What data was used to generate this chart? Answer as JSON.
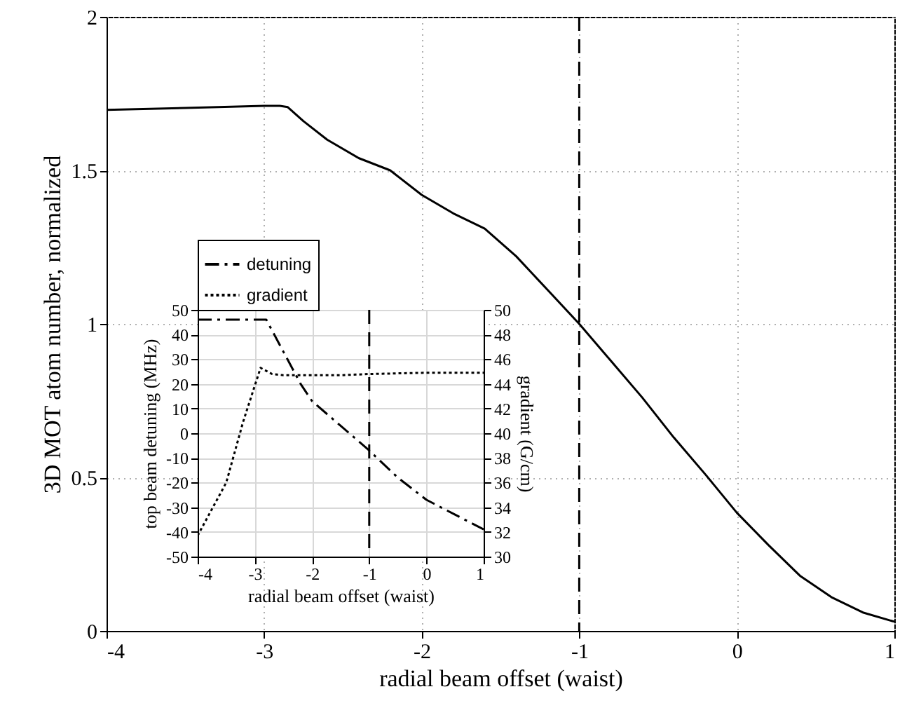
{
  "chart_data": [
    {
      "type": "line",
      "xlabel": "radial beam offset (waist)",
      "ylabel": "3D MOT atom number, normalized",
      "xlim": [
        -4,
        1
      ],
      "ylim": [
        0,
        2
      ],
      "xticks": [
        -4,
        -3,
        -2,
        -1,
        0,
        1
      ],
      "yticks": [
        0,
        0.5,
        1,
        1.5,
        2
      ],
      "grid": true,
      "line_style": "solid",
      "x": [
        -4,
        -3.5,
        -3,
        -2.9,
        -2.85,
        -2.75,
        -2.6,
        -2.4,
        -2.2,
        -2,
        -1.8,
        -1.6,
        -1.4,
        -1.2,
        -1,
        -0.8,
        -0.6,
        -0.4,
        -0.2,
        0,
        0.2,
        0.4,
        0.6,
        0.8,
        1
      ],
      "series": [
        {
          "color": "#000000",
          "values": [
            1.697,
            1.703,
            1.71,
            1.71,
            1.706,
            1.66,
            1.6,
            1.54,
            1.5,
            1.42,
            1.36,
            1.31,
            1.22,
            1.11,
            1.0,
            0.88,
            0.76,
            0.63,
            0.51,
            0.385,
            0.28,
            0.18,
            0.11,
            0.06,
            0.03
          ]
        }
      ],
      "ref_lines": [
        {
          "axis": "x",
          "value": -1,
          "line_style": "dashed",
          "color": "#000000"
        }
      ]
    },
    {
      "type": "line",
      "xlabel": "radial beam offset (waist)",
      "ylabel": "top beam detuning (MHz)",
      "y2label": "gradient (G/cm)",
      "xlim": [
        -4,
        1
      ],
      "ylim": [
        -50,
        50
      ],
      "y2lim": [
        30,
        50
      ],
      "xticks": [
        -4,
        -3,
        -2,
        -1,
        0,
        1
      ],
      "yticks": [
        -50,
        -40,
        -30,
        -20,
        -10,
        0,
        10,
        20,
        30,
        40,
        50
      ],
      "y2ticks": [
        30,
        32,
        34,
        36,
        38,
        40,
        42,
        44,
        46,
        48,
        50
      ],
      "grid": true,
      "legend": "top left",
      "series": [
        {
          "name": "detuning",
          "color": "#000000",
          "line_style": "dashdot",
          "x": [
            -4,
            -2.8,
            -2.5,
            -2.2,
            -2,
            -1.5,
            -1,
            -0.5,
            0,
            0.5,
            1
          ],
          "values": [
            46,
            46,
            33,
            20,
            13,
            3,
            -7,
            -18,
            -27,
            -33,
            -39
          ]
        },
        {
          "name": "gradient",
          "color": "#000000",
          "line_style": "dotted",
          "axis": "y2",
          "x": [
            -4,
            -3.5,
            -3.2,
            -2.9,
            -2.7,
            -2.5,
            -1.5,
            -1,
            0,
            1
          ],
          "values": [
            31.7,
            36,
            41,
            45.3,
            44.8,
            44.7,
            44.7,
            44.8,
            44.9,
            44.9
          ]
        }
      ],
      "ref_lines": [
        {
          "axis": "x",
          "value": -1,
          "line_style": "dashed",
          "color": "#000000"
        }
      ]
    }
  ]
}
